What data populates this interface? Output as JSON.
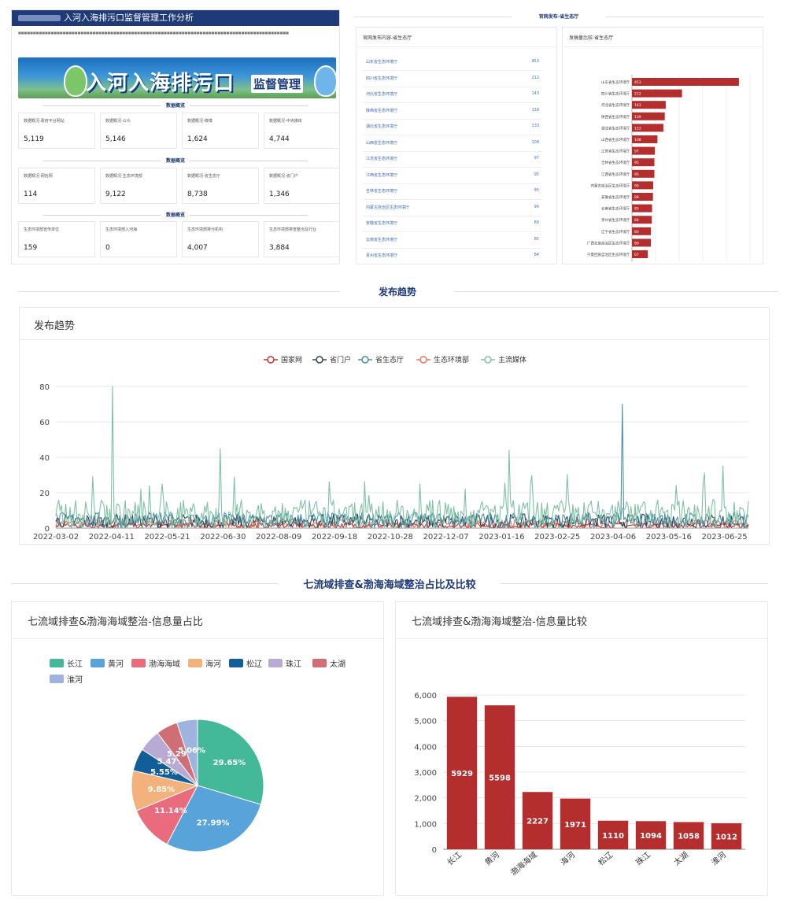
{
  "report": {
    "title": "入河入海排污口监督管理工作分析",
    "banner_title": "入河入海排污口",
    "banner_sub": "监督管理",
    "sections": [
      "数据概览",
      "数据概览",
      "数据概览"
    ],
    "cards": [
      [
        {
          "label": "数据概况-政府平台网站",
          "value": "5,119"
        },
        {
          "label": "数据概况-公众",
          "value": "5,146"
        },
        {
          "label": "数据概况-微博",
          "value": "1,624"
        },
        {
          "label": "数据概况-中央媒体",
          "value": "4,744"
        }
      ],
      [
        {
          "label": "数据概况-网信网",
          "value": "114"
        },
        {
          "label": "数据概况-生态环境部",
          "value": "9,122"
        },
        {
          "label": "数据概况-省生态厅",
          "value": "8,738"
        },
        {
          "label": "数据概况-省门户",
          "value": "1,346"
        }
      ],
      [
        {
          "label": "生态环境部宣传单位",
          "value": "159"
        },
        {
          "label": "生态环境部入河海",
          "value": "0"
        },
        {
          "label": "生态环境部排污机构",
          "value": "4,007"
        },
        {
          "label": "生态环境部排查整治及行业",
          "value": "3,884"
        }
      ]
    ]
  },
  "top_right": {
    "section_title": "官网发布-省生态厅",
    "list_title": "官网发布内容-省生态厅",
    "bar_title": "发稿量比较-省生态厅",
    "list": [
      {
        "name": "山东省生态环境厅",
        "value": "453"
      },
      {
        "name": "四川省生态环境厅",
        "value": "212"
      },
      {
        "name": "河北省生态环境厅",
        "value": "143"
      },
      {
        "name": "陕西省生态环境厅",
        "value": "139"
      },
      {
        "name": "湖北省生态环境厅",
        "value": "133"
      },
      {
        "name": "山西省生态环境厅",
        "value": "108"
      },
      {
        "name": "江苏省生态环境厅",
        "value": "97"
      },
      {
        "name": "江西省生态环境厅",
        "value": "95"
      },
      {
        "name": "吉林省生态环境厅",
        "value": "95"
      },
      {
        "name": "内蒙古自治区生态环境厅",
        "value": "90"
      },
      {
        "name": "安徽省生态环境厅",
        "value": "89"
      },
      {
        "name": "云南省生态环境厅",
        "value": "85"
      },
      {
        "name": "贵州省生态环境厅",
        "value": "84"
      }
    ],
    "bars": [
      {
        "name": "山东省生态环境厅",
        "value": 453
      },
      {
        "name": "四川省生态环境厅",
        "value": 212
      },
      {
        "name": "河北省生态环境厅",
        "value": 143
      },
      {
        "name": "陕西省生态环境厅",
        "value": 139
      },
      {
        "name": "湖北省生态环境厅",
        "value": 133
      },
      {
        "name": "山西省生态环境厅",
        "value": 108
      },
      {
        "name": "江苏省生态环境厅",
        "value": 97
      },
      {
        "name": "吉林省生态环境厅",
        "value": 95
      },
      {
        "name": "江西省生态环境厅",
        "value": 95
      },
      {
        "name": "内蒙古自治区生态环境厅",
        "value": 90
      },
      {
        "name": "安徽省生态环境厅",
        "value": 89
      },
      {
        "name": "云南省生态环境厅",
        "value": 85
      },
      {
        "name": "贵州省生态环境厅",
        "value": 84
      },
      {
        "name": "辽宁省生态环境厅",
        "value": 80
      },
      {
        "name": "广西壮族自治区生态环境厅",
        "value": 80
      },
      {
        "name": "宁夏回族自治区生态环境厅",
        "value": 67
      }
    ]
  },
  "trend": {
    "section_title": "发布趋势",
    "panel_title": "发布趋势"
  },
  "basin": {
    "section_title": "七流域排查&渤海海域整治占比及比较",
    "pie_title": "七流域排查&渤海海域整治-信息量占比",
    "bar_title": "七流域排查&渤海海域整治-信息量比较"
  },
  "colors": {
    "accent": "#1f3a78",
    "bar_red": "#b52e2e"
  },
  "chart_data": [
    {
      "type": "line",
      "title": "发布趋势",
      "series": [
        {
          "name": "国家网",
          "color": "#c23531",
          "values": []
        },
        {
          "name": "省门户",
          "color": "#2f4554",
          "values": []
        },
        {
          "name": "省生态厅",
          "color": "#4a8fa8",
          "values": []
        },
        {
          "name": "生态环境部",
          "color": "#e07b5a",
          "values": []
        },
        {
          "name": "主流媒体",
          "color": "#7fc1a4",
          "values": []
        }
      ],
      "x_tick_labels": [
        "2022-03-02",
        "2022-04-11",
        "2022-05-21",
        "2022-06-30",
        "2022-08-09",
        "2022-09-18",
        "2022-10-28",
        "2022-12-07",
        "2023-01-16",
        "2023-02-25",
        "2023-04-06",
        "2023-05-16",
        "2023-06-25"
      ],
      "xlim": [
        "2022-03-02",
        "2023-07-01"
      ],
      "ylim": [
        0,
        80
      ],
      "y_ticks": [
        0,
        20,
        40,
        60,
        80
      ],
      "peaks": [
        {
          "series": "主流媒体",
          "date": "2022-04-11",
          "value": 80
        },
        {
          "series": "省生态厅",
          "date": "2023-04-06",
          "value": 70
        },
        {
          "series": "主流媒体",
          "date": "2022-06-26",
          "value": 45
        },
        {
          "series": "主流媒体",
          "date": "2023-01-16",
          "value": 44
        }
      ]
    },
    {
      "type": "pie",
      "title": "七流域排查&渤海海域整治-信息量占比",
      "categories": [
        "长江",
        "黄河",
        "渤海海域",
        "海河",
        "松辽",
        "珠江",
        "太湖",
        "淮河"
      ],
      "values": [
        29.65,
        27.99,
        11.14,
        9.85,
        5.55,
        5.47,
        5.29,
        5.06
      ],
      "labels": [
        "29.65%",
        "27.99%",
        "11.14%",
        "9.85%",
        "5.55%",
        "5.47%",
        "5.29%",
        "5.06%"
      ],
      "colors": [
        "#44b99a",
        "#58a3d9",
        "#e96b7d",
        "#f3b27b",
        "#125e9a",
        "#b9aad3",
        "#cf6f75",
        "#9eb4de"
      ],
      "legend": "top-left"
    },
    {
      "type": "bar",
      "title": "七流域排查&渤海海域整治-信息量比较",
      "categories": [
        "长江",
        "黄河",
        "渤海海域",
        "海河",
        "松辽",
        "珠江",
        "太湖",
        "淮河"
      ],
      "values": [
        5929,
        5598,
        2227,
        1971,
        1110,
        1094,
        1058,
        1012
      ],
      "ylim": [
        0,
        6000
      ],
      "y_tick_labels": [
        "0",
        "1,000",
        "2,000",
        "3,000",
        "4,000",
        "5,000",
        "6,000"
      ],
      "grid": true,
      "color": "#b52e2e"
    }
  ]
}
